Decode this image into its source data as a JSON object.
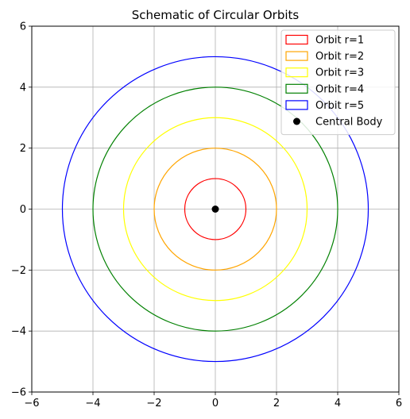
{
  "chart_data": {
    "type": "scatter",
    "title": "Schematic of Circular Orbits",
    "xlabel": "",
    "ylabel": "",
    "xlim": [
      -6,
      6
    ],
    "ylim": [
      -6,
      6
    ],
    "grid": true,
    "legend_position": "top-right",
    "xticks": [
      "−6",
      "−4",
      "−2",
      "0",
      "2",
      "4",
      "6"
    ],
    "yticks": [
      "−6",
      "−4",
      "−2",
      "0",
      "2",
      "4",
      "6"
    ],
    "xtick_values": [
      -6,
      -4,
      -2,
      0,
      2,
      4,
      6
    ],
    "ytick_values": [
      -6,
      -4,
      -2,
      0,
      2,
      4,
      6
    ],
    "series": [
      {
        "name": "Orbit r=1",
        "kind": "circle",
        "center": [
          0,
          0
        ],
        "radius": 1,
        "color": "#ff0000"
      },
      {
        "name": "Orbit r=2",
        "kind": "circle",
        "center": [
          0,
          0
        ],
        "radius": 2,
        "color": "#ffa500"
      },
      {
        "name": "Orbit r=3",
        "kind": "circle",
        "center": [
          0,
          0
        ],
        "radius": 3,
        "color": "#ffff00"
      },
      {
        "name": "Orbit r=4",
        "kind": "circle",
        "center": [
          0,
          0
        ],
        "radius": 4,
        "color": "#008000"
      },
      {
        "name": "Orbit r=5",
        "kind": "circle",
        "center": [
          0,
          0
        ],
        "radius": 5,
        "color": "#0000ff"
      },
      {
        "name": "Central Body",
        "kind": "point",
        "x": [
          0
        ],
        "y": [
          0
        ],
        "color": "#000000"
      }
    ]
  }
}
